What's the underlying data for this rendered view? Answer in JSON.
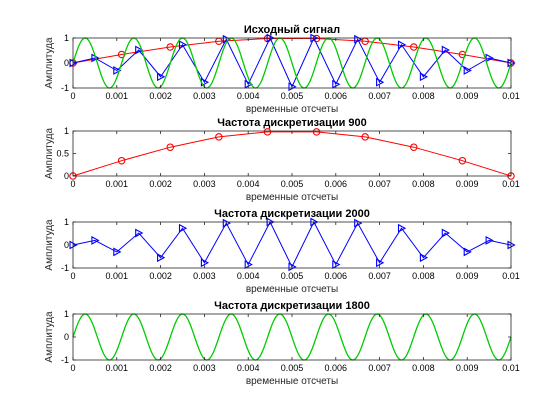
{
  "chart_data": [
    {
      "type": "line",
      "title": "Исходный сигнал",
      "xlabel": "временные отсчеты",
      "ylabel": "Амплитуда",
      "xlim": [
        0,
        0.01
      ],
      "ylim": [
        -1,
        1
      ],
      "xticks": [
        "0",
        "0.001",
        "0.002",
        "0.003",
        "0.004",
        "0.005",
        "0.006",
        "0.007",
        "0.008",
        "0.009",
        "0.01"
      ],
      "yticks": [
        "-1",
        "0",
        "1"
      ],
      "series": [
        {
          "color": "#ff0000",
          "marker": "circle",
          "style": "line+marker",
          "x": [
            0,
            0.00111,
            0.00222,
            0.00333,
            0.00444,
            0.00556,
            0.00667,
            0.00778,
            0.00889,
            0.01
          ],
          "y": [
            0,
            0.34,
            0.64,
            0.87,
            0.98,
            0.98,
            0.87,
            0.64,
            0.34,
            0
          ]
        },
        {
          "color": "#0000ff",
          "marker": "triangle-right",
          "style": "line+marker",
          "x": [
            0,
            0.0005,
            0.001,
            0.0015,
            0.002,
            0.0025,
            0.003,
            0.0035,
            0.004,
            0.0045,
            0.005,
            0.0055,
            0.006,
            0.0065,
            0.007,
            0.0075,
            0.008,
            0.0085,
            0.009,
            0.0095,
            0.01
          ],
          "y": [
            0,
            0.2,
            -0.3,
            0.52,
            -0.55,
            0.73,
            -0.77,
            0.95,
            -0.85,
            1.0,
            -0.95,
            1.0,
            -0.85,
            0.95,
            -0.77,
            0.73,
            -0.55,
            0.52,
            -0.3,
            0.2,
            0
          ]
        },
        {
          "color": "#00cc00",
          "marker": "none",
          "style": "line",
          "frequency": 900,
          "amplitude": 1,
          "xrange": [
            0,
            0.01
          ]
        }
      ]
    },
    {
      "type": "line",
      "title": "Частота дискретизации 900",
      "xlabel": "временные отсчеты",
      "ylabel": "Амплитуда",
      "xlim": [
        0,
        0.01
      ],
      "ylim": [
        0,
        1
      ],
      "xticks": [
        "0",
        "0.001",
        "0.002",
        "0.003",
        "0.004",
        "0.005",
        "0.006",
        "0.007",
        "0.008",
        "0.009",
        "0.01"
      ],
      "yticks": [
        "0",
        "0.5",
        "1"
      ],
      "series": [
        {
          "color": "#ff0000",
          "marker": "circle",
          "style": "line+marker",
          "x": [
            0,
            0.00111,
            0.00222,
            0.00333,
            0.00444,
            0.00556,
            0.00667,
            0.00778,
            0.00889,
            0.01
          ],
          "y": [
            0,
            0.34,
            0.64,
            0.87,
            0.98,
            0.98,
            0.87,
            0.64,
            0.34,
            0
          ]
        }
      ]
    },
    {
      "type": "line",
      "title": "Частота дискретизации 2000",
      "xlabel": "временные отсчеты",
      "ylabel": "Амплитуда",
      "xlim": [
        0,
        0.01
      ],
      "ylim": [
        -1,
        1
      ],
      "xticks": [
        "0",
        "0.001",
        "0.002",
        "0.003",
        "0.004",
        "0.005",
        "0.006",
        "0.007",
        "0.008",
        "0.009",
        "0.01"
      ],
      "yticks": [
        "-1",
        "0",
        "1"
      ],
      "series": [
        {
          "color": "#0000ff",
          "marker": "triangle-right",
          "style": "line+marker",
          "x": [
            0,
            0.0005,
            0.001,
            0.0015,
            0.002,
            0.0025,
            0.003,
            0.0035,
            0.004,
            0.0045,
            0.005,
            0.0055,
            0.006,
            0.0065,
            0.007,
            0.0075,
            0.008,
            0.0085,
            0.009,
            0.0095,
            0.01
          ],
          "y": [
            0,
            0.2,
            -0.3,
            0.52,
            -0.55,
            0.73,
            -0.77,
            0.95,
            -0.85,
            1.0,
            -0.95,
            1.0,
            -0.85,
            0.95,
            -0.77,
            0.73,
            -0.55,
            0.52,
            -0.3,
            0.2,
            0
          ]
        }
      ]
    },
    {
      "type": "line",
      "title": "Частота дискретизации 1800",
      "xlabel": "временные отсчеты",
      "ylabel": "Амплитуда",
      "xlim": [
        0,
        0.01
      ],
      "ylim": [
        -1,
        1
      ],
      "xticks": [
        "0",
        "0.001",
        "0.002",
        "0.003",
        "0.004",
        "0.005",
        "0.006",
        "0.007",
        "0.008",
        "0.009",
        "0.01"
      ],
      "yticks": [
        "-1",
        "0",
        "1"
      ],
      "series": [
        {
          "color": "#00cc00",
          "marker": "none",
          "style": "line",
          "frequency": 900,
          "amplitude": 1,
          "xrange": [
            0,
            0.01
          ]
        }
      ]
    }
  ]
}
